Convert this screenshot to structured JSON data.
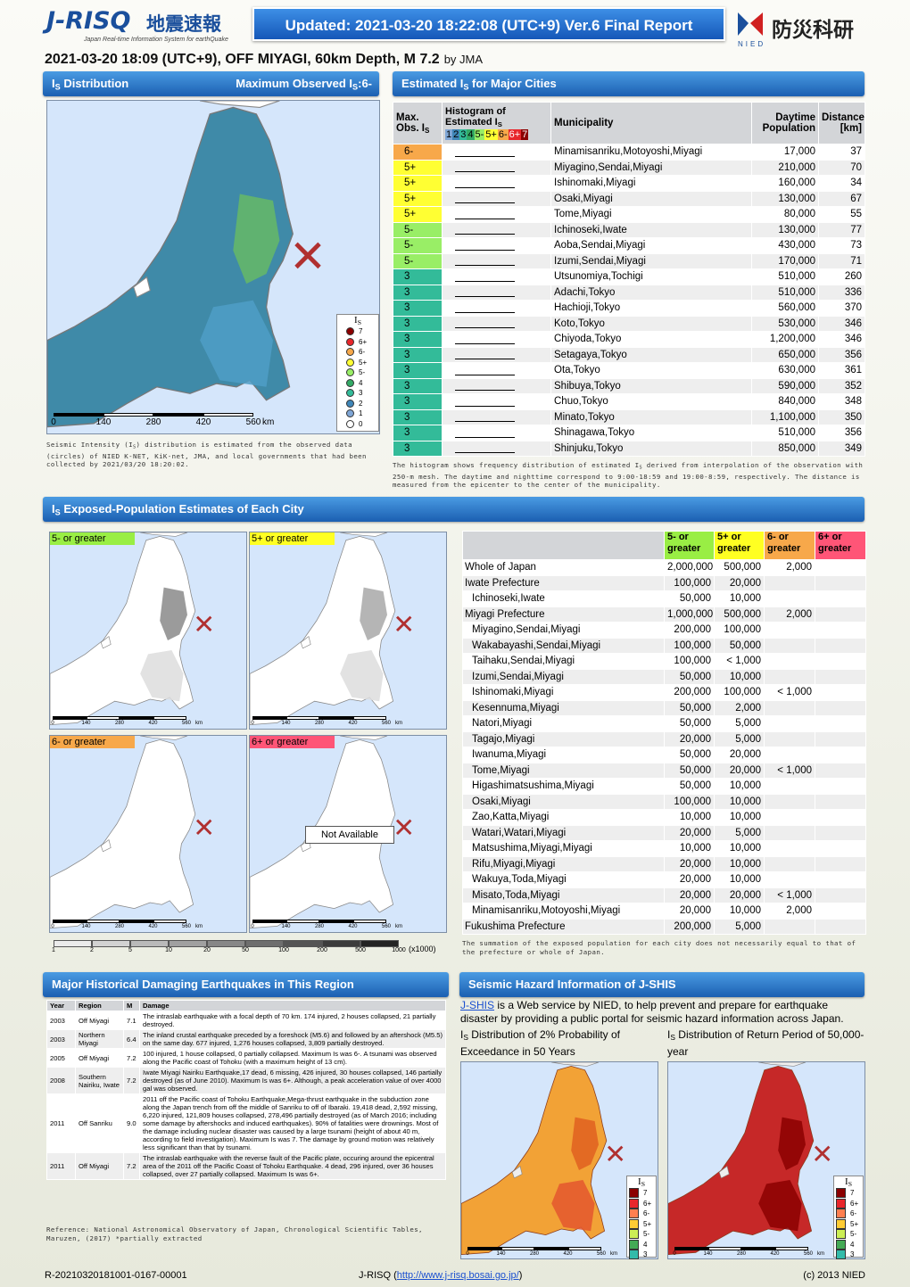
{
  "header": {
    "logo": "J-RISQ",
    "logo_jp": "地震速報",
    "logo_sub": "Japan Real-time Information System for earthQuake",
    "updated": "Updated: 2021-03-20 18:22:08 (UTC+9) Ver.6 Final Report",
    "nied_jp": "防災科研",
    "nied": "NIED"
  },
  "event": {
    "title": "2021-03-20 18:09 (UTC+9), OFF MIYAGI, 60km Depth, M 7.2",
    "by": "by JMA"
  },
  "distribution": {
    "title": [
      "I",
      "S",
      " Distribution"
    ],
    "max_observed": [
      "Maximum Observed I",
      "S",
      ":6-"
    ],
    "legend": {
      "title": [
        "I",
        "S"
      ],
      "levels": [
        {
          "label": "7",
          "color": "#8b0000"
        },
        {
          "label": "6+",
          "color": "#e8262b"
        },
        {
          "label": "6-",
          "color": "#f7a84a"
        },
        {
          "label": "5+",
          "color": "#ffff33"
        },
        {
          "label": "5-",
          "color": "#99ee66"
        },
        {
          "label": "4",
          "color": "#33aa66"
        },
        {
          "label": "3",
          "color": "#33bb99"
        },
        {
          "label": "2",
          "color": "#3f86b8"
        },
        {
          "label": "1",
          "color": "#7fa6d6"
        },
        {
          "label": "0",
          "color": "#ffffff"
        }
      ]
    },
    "scale": [
      0,
      140,
      280,
      420,
      560
    ],
    "scale_unit": "km",
    "caption": [
      "Seismic Intensity (I",
      "S",
      ") distribution is estimated from the observed data (circles) of NIED K-NET, KiK-net, JMA, and local governments that had been collected by 2021/03/20 18:20:02."
    ]
  },
  "cities": {
    "title": [
      "Estimated I",
      "S",
      " for Major Cities"
    ],
    "headers": {
      "max_obs": [
        "Max. Obs. I",
        "S"
      ],
      "histogram": [
        "Histogram of Estimated I",
        "S"
      ],
      "histogram_scale": [
        "1",
        "2",
        "3",
        "4",
        "5-",
        "5+",
        "6-",
        "6+",
        "7"
      ],
      "municipality": "Municipality",
      "population": "Daytime Population",
      "distance": "Distance [km]"
    },
    "rows": [
      [
        "6-",
        "Minamisanriku,Motoyoshi,Miyagi",
        "17,000",
        "37"
      ],
      [
        "5+",
        "Miyagino,Sendai,Miyagi",
        "210,000",
        "70"
      ],
      [
        "5+",
        "Ishinomaki,Miyagi",
        "160,000",
        "34"
      ],
      [
        "5+",
        "Osaki,Miyagi",
        "130,000",
        "67"
      ],
      [
        "5+",
        "Tome,Miyagi",
        "80,000",
        "55"
      ],
      [
        "5-",
        "Ichinoseki,Iwate",
        "130,000",
        "77"
      ],
      [
        "5-",
        "Aoba,Sendai,Miyagi",
        "430,000",
        "73"
      ],
      [
        "5-",
        "Izumi,Sendai,Miyagi",
        "170,000",
        "71"
      ],
      [
        "3",
        "Utsunomiya,Tochigi",
        "510,000",
        "260"
      ],
      [
        "3",
        "Adachi,Tokyo",
        "510,000",
        "336"
      ],
      [
        "3",
        "Hachioji,Tokyo",
        "560,000",
        "370"
      ],
      [
        "3",
        "Koto,Tokyo",
        "530,000",
        "346"
      ],
      [
        "3",
        "Chiyoda,Tokyo",
        "1,200,000",
        "346"
      ],
      [
        "3",
        "Setagaya,Tokyo",
        "650,000",
        "356"
      ],
      [
        "3",
        "Ota,Tokyo",
        "630,000",
        "361"
      ],
      [
        "3",
        "Shibuya,Tokyo",
        "590,000",
        "352"
      ],
      [
        "3",
        "Chuo,Tokyo",
        "840,000",
        "348"
      ],
      [
        "3",
        "Minato,Tokyo",
        "1,100,000",
        "350"
      ],
      [
        "3",
        "Shinagawa,Tokyo",
        "510,000",
        "356"
      ],
      [
        "3",
        "Shinjuku,Tokyo",
        "850,000",
        "349"
      ]
    ],
    "note": [
      "The histogram shows frequency distribution of estimated I",
      "S",
      " derived from interpolation of the observation with 250-m mesh. The daytime and nighttime correspond to 9:00-18:59 and 19:00-8:59, respectively. The distance is measured from the epicenter to the center of the municipality."
    ]
  },
  "exposure": {
    "title": [
      "I",
      "S",
      " Exposed-Population Estimates of Each City"
    ],
    "levels": [
      {
        "label": "5- or greater",
        "color": "#99ee44"
      },
      {
        "label": "5+ or greater",
        "color": "#ffff22"
      },
      {
        "label": "6- or greater",
        "color": "#f7a84a"
      },
      {
        "label": "6+ or greater",
        "color": "#ff5577"
      }
    ],
    "not_available": "Not Available",
    "scale": [
      0,
      140,
      280,
      420,
      560
    ],
    "scale_unit": "km",
    "population_scale": [
      1,
      2,
      5,
      10,
      20,
      50,
      100,
      200,
      500,
      1000
    ],
    "population_unit": "(x1000)",
    "groups": [
      {
        "name": "Whole of Japan",
        "values": [
          "2,000,000",
          "500,000",
          "2,000",
          null
        ]
      },
      {
        "name": "Iwate Prefecture",
        "values": [
          "100,000",
          "20,000",
          null,
          null
        ],
        "cities": [
          {
            "name": "Ichinoseki,Iwate",
            "values": [
              "50,000",
              "10,000",
              null,
              null
            ]
          }
        ]
      },
      {
        "name": "Miyagi Prefecture",
        "values": [
          "1,000,000",
          "500,000",
          "2,000",
          null
        ],
        "cities": [
          {
            "name": "Miyagino,Sendai,Miyagi",
            "values": [
              "200,000",
              "100,000",
              null,
              null
            ]
          },
          {
            "name": "Wakabayashi,Sendai,Miyagi",
            "values": [
              "100,000",
              "50,000",
              null,
              null
            ]
          },
          {
            "name": "Taihaku,Sendai,Miyagi",
            "values": [
              "100,000",
              "< 1,000",
              null,
              null
            ]
          },
          {
            "name": "Izumi,Sendai,Miyagi",
            "values": [
              "50,000",
              "10,000",
              null,
              null
            ]
          },
          {
            "name": "Ishinomaki,Miyagi",
            "values": [
              "200,000",
              "100,000",
              "< 1,000",
              null
            ]
          },
          {
            "name": "Kesennuma,Miyagi",
            "values": [
              "50,000",
              "2,000",
              null,
              null
            ]
          },
          {
            "name": "Natori,Miyagi",
            "values": [
              "50,000",
              "5,000",
              null,
              null
            ]
          },
          {
            "name": "Tagajo,Miyagi",
            "values": [
              "20,000",
              "5,000",
              null,
              null
            ]
          },
          {
            "name": "Iwanuma,Miyagi",
            "values": [
              "50,000",
              "20,000",
              null,
              null
            ]
          },
          {
            "name": "Tome,Miyagi",
            "values": [
              "50,000",
              "20,000",
              "< 1,000",
              null
            ]
          },
          {
            "name": "Higashimatsushima,Miyagi",
            "values": [
              "50,000",
              "10,000",
              null,
              null
            ]
          },
          {
            "name": "Osaki,Miyagi",
            "values": [
              "100,000",
              "10,000",
              null,
              null
            ]
          },
          {
            "name": "Zao,Katta,Miyagi",
            "values": [
              "10,000",
              "10,000",
              null,
              null
            ]
          },
          {
            "name": "Watari,Watari,Miyagi",
            "values": [
              "20,000",
              "5,000",
              null,
              null
            ]
          },
          {
            "name": "Matsushima,Miyagi,Miyagi",
            "values": [
              "10,000",
              "10,000",
              null,
              null
            ]
          },
          {
            "name": "Rifu,Miyagi,Miyagi",
            "values": [
              "20,000",
              "10,000",
              null,
              null
            ]
          },
          {
            "name": "Wakuya,Toda,Miyagi",
            "values": [
              "20,000",
              "10,000",
              null,
              null
            ]
          },
          {
            "name": "Misato,Toda,Miyagi",
            "values": [
              "20,000",
              "20,000",
              "< 1,000",
              null
            ]
          },
          {
            "name": "Minamisanriku,Motoyoshi,Miyagi",
            "values": [
              "20,000",
              "10,000",
              "2,000",
              null
            ]
          }
        ]
      },
      {
        "name": "Fukushima Prefecture",
        "values": [
          "200,000",
          "5,000",
          null,
          null
        ]
      }
    ],
    "note": "The summation of the exposed population for each city does not necessarily equal to that of the prefecture or whole of Japan."
  },
  "history": {
    "title": "Major Historical Damaging Earthquakes in This Region",
    "headers": [
      "Year",
      "Region",
      "M",
      "Damage"
    ],
    "rows": [
      [
        "2003",
        "Off Miyagi",
        "7.1",
        "The intraslab earthquake with a focal depth of 70 km. 174 injured, 2 houses collapsed, 21 partially destroyed."
      ],
      [
        "2003",
        "Northern Miyagi",
        "6.4",
        "The inland crustal earthquake preceded by a foreshock (M5.6) and followed by an aftershock (M5.5) on the same day. 677 injured, 1,276 houses collapsed, 3,809 partially destroyed."
      ],
      [
        "2005",
        "Off Miyagi",
        "7.2",
        "100 injured, 1 house collapsed, 0 partially collapsed. Maximum Is was 6-. A tsunami was observed along the Pacific coast of Tohoku (with a maximum height of 13 cm)."
      ],
      [
        "2008",
        "Southern Nairiku, Iwate",
        "7.2",
        "Iwate Miyagi Nairiku Earthquake,17 dead, 6 missing, 426 injured, 30 houses collapsed, 146 partially destroyed (as of June 2010). Maximum Is was 6+. Although, a peak acceleration value of over 4000 gal was observed."
      ],
      [
        "2011",
        "Off Sanriku",
        "9.0",
        "2011 off the Pacific coast of Tohoku Earthquake,Mega-thrust earthquake in the subduction zone along the Japan trench from off the middle of Sanriku to off of Ibaraki. 19,418 dead, 2,592 missing, 6,220 injured, 121,809 houses collapsed, 278,496 partially destroyed (as of March 2016; including some damage by aftershocks and induced earthquakes). 90% of fatalities were drownings. Most of the damage including nuclear disaster was caused by a large tsunami (height of about 40 m, according to field investigation). Maximum Is was 7. The damage by ground motion was relatively less significant than that by tsunami."
      ],
      [
        "2011",
        "Off Miyagi",
        "7.2",
        "The intraslab earthquake with the reverse fault of the Pacific plate, occuring around the epicentral area of the 2011 off the Pacific Coast of Tohoku Earthquake. 4 dead, 296 injured, over 36 houses collapsed, over 27 partially collapsed. Maximum Is was 6+."
      ]
    ],
    "reference": "Reference: National Astronomical Observatory of Japan, Chronological Scientific Tables, Maruzen, (2017) *partially extracted"
  },
  "jshis": {
    "title": "Seismic Hazard Information of J-SHIS",
    "link": "J-SHIS",
    "intro": " is a Web service by NIED, to help prevent and prepare for earthquake disaster by providing a public portal for seismic hazard information across Japan.",
    "maps": [
      [
        "I",
        "S",
        " Distribution of 2% Probability of Exceedance in 50 Years"
      ],
      [
        "I",
        "S",
        " Distribution of Return Period of 50,000-year"
      ]
    ],
    "legend": {
      "title": [
        "I",
        "S"
      ],
      "levels": [
        {
          "label": "7",
          "color": "#8b0000"
        },
        {
          "label": "6+",
          "color": "#e8262b"
        },
        {
          "label": "6-",
          "color": "#ff7f50"
        },
        {
          "label": "5+",
          "color": "#ffcc33"
        },
        {
          "label": "5-",
          "color": "#ccee55"
        },
        {
          "label": "4",
          "color": "#44aa55"
        },
        {
          "label": "3",
          "color": "#33bbaa"
        }
      ]
    },
    "scale": [
      0,
      140,
      280,
      420,
      560
    ],
    "scale_unit": "km"
  },
  "footer": {
    "id": "R-20210320181001-0167-00001",
    "site_pre": "J-RISQ (",
    "url": "http://www.j-risq.bosai.go.jp/",
    "site_post": ")",
    "copyright": "(c) 2013 NIED"
  }
}
